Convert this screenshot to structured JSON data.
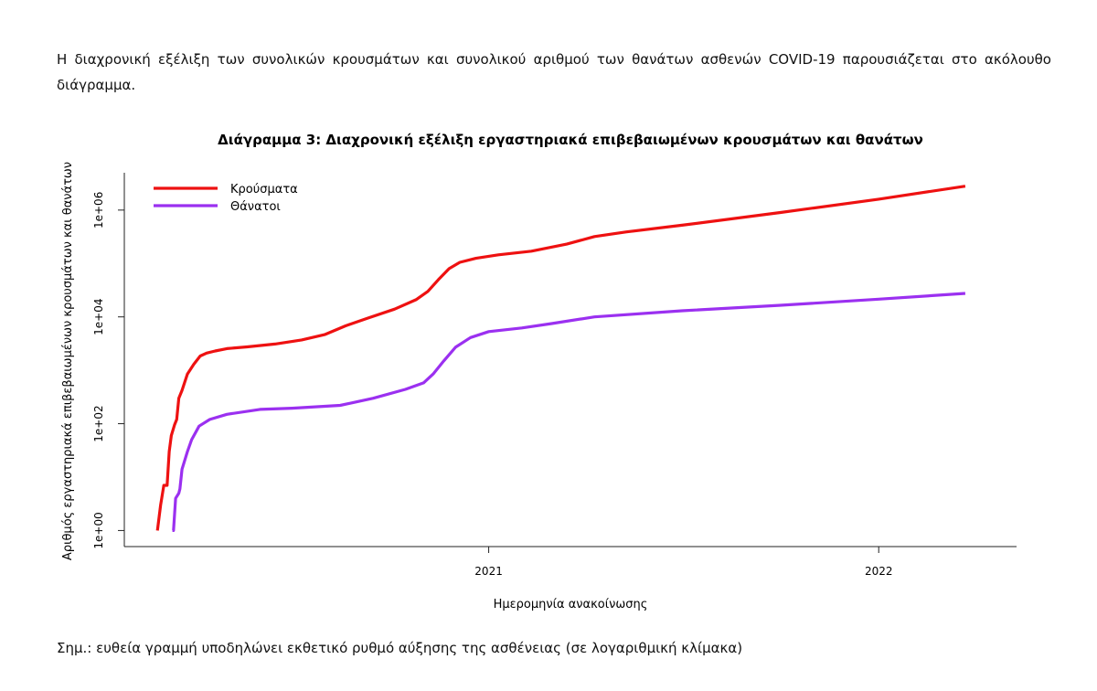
{
  "page": {
    "intro_text": "Η διαχρονική εξέλιξη των συνολικών κρουσμάτων και συνολικού αριθμού των θανάτων ασθενών COVID-19 παρουσιάζεται στο ακόλουθο διάγραμμα.",
    "note_text": "Σημ.: ευθεία γραμμή υποδηλώνει εκθετικό ρυθμό αύξησης της ασθένειας (σε λογαριθμική κλίμακα)"
  },
  "chart_data": {
    "type": "line",
    "title": "Διάγραμμα 3: Διαχρονική εξέλιξη εργαστηριακά επιβεβαιωμένων κρουσμάτων και θανάτων",
    "xlabel": "Ημερομηνία ανακοίνωσης",
    "ylabel": "Αριθμός εργαστηριακά επιβεβαιωμένων κρουσμάτων και θανάτων",
    "y_scale": "log10",
    "ylim": [
      0.5,
      5000000
    ],
    "xlim": [
      "2020-01-26",
      "2022-05-10"
    ],
    "x_ticks": [
      {
        "date": "2021-01-01",
        "label": "2021"
      },
      {
        "date": "2022-01-01",
        "label": "2022"
      }
    ],
    "y_ticks": [
      {
        "value": 1,
        "label": "1e+00"
      },
      {
        "value": 100,
        "label": "1e+02"
      },
      {
        "value": 10000,
        "label": "1e+04"
      },
      {
        "value": 1000000,
        "label": "1e+06"
      }
    ],
    "legend": {
      "position": "top-left"
    },
    "grid": false,
    "series": [
      {
        "name": "Κρούσματα",
        "color": "#ee1111",
        "points": [
          [
            "2020-02-26",
            1
          ],
          [
            "2020-02-29",
            3
          ],
          [
            "2020-03-01",
            4
          ],
          [
            "2020-03-03",
            7
          ],
          [
            "2020-03-06",
            7
          ],
          [
            "2020-03-08",
            30
          ],
          [
            "2020-03-10",
            60
          ],
          [
            "2020-03-13",
            95
          ],
          [
            "2020-03-15",
            120
          ],
          [
            "2020-03-17",
            300
          ],
          [
            "2020-03-20",
            420
          ],
          [
            "2020-03-25",
            850
          ],
          [
            "2020-03-31",
            1300
          ],
          [
            "2020-04-06",
            1850
          ],
          [
            "2020-04-12",
            2100
          ],
          [
            "2020-04-20",
            2300
          ],
          [
            "2020-05-01",
            2550
          ],
          [
            "2020-05-20",
            2750
          ],
          [
            "2020-06-15",
            3100
          ],
          [
            "2020-07-10",
            3700
          ],
          [
            "2020-08-01",
            4700
          ],
          [
            "2020-08-20",
            6800
          ],
          [
            "2020-09-10",
            9500
          ],
          [
            "2020-10-05",
            14000
          ],
          [
            "2020-10-25",
            21000
          ],
          [
            "2020-11-05",
            30000
          ],
          [
            "2020-11-15",
            50000
          ],
          [
            "2020-11-25",
            80000
          ],
          [
            "2020-12-05",
            105000
          ],
          [
            "2020-12-20",
            125000
          ],
          [
            "2021-01-10",
            145000
          ],
          [
            "2021-02-10",
            170000
          ],
          [
            "2021-03-15",
            230000
          ],
          [
            "2021-04-10",
            320000
          ],
          [
            "2021-05-10",
            390000
          ],
          [
            "2021-07-01",
            520000
          ],
          [
            "2021-10-01",
            900000
          ],
          [
            "2022-01-01",
            1600000
          ],
          [
            "2022-03-23",
            2800000
          ]
        ]
      },
      {
        "name": "Θάνατοι",
        "color": "#9b30f0",
        "points": [
          [
            "2020-03-11",
            1
          ],
          [
            "2020-03-12",
            1
          ],
          [
            "2020-03-14",
            4
          ],
          [
            "2020-03-17",
            5
          ],
          [
            "2020-03-18",
            6
          ],
          [
            "2020-03-20",
            14
          ],
          [
            "2020-03-25",
            30
          ],
          [
            "2020-03-29",
            50
          ],
          [
            "2020-04-05",
            90
          ],
          [
            "2020-04-15",
            120
          ],
          [
            "2020-05-01",
            150
          ],
          [
            "2020-06-01",
            185
          ],
          [
            "2020-07-01",
            195
          ],
          [
            "2020-08-15",
            220
          ],
          [
            "2020-09-15",
            300
          ],
          [
            "2020-10-15",
            440
          ],
          [
            "2020-11-01",
            580
          ],
          [
            "2020-11-10",
            850
          ],
          [
            "2020-11-20",
            1500
          ],
          [
            "2020-12-01",
            2700
          ],
          [
            "2020-12-15",
            4100
          ],
          [
            "2021-01-01",
            5300
          ],
          [
            "2021-02-01",
            6200
          ],
          [
            "2021-03-01",
            7500
          ],
          [
            "2021-04-10",
            10000
          ],
          [
            "2021-07-01",
            13000
          ],
          [
            "2021-10-01",
            16500
          ],
          [
            "2022-01-01",
            21500
          ],
          [
            "2022-03-23",
            27500
          ]
        ]
      }
    ]
  }
}
